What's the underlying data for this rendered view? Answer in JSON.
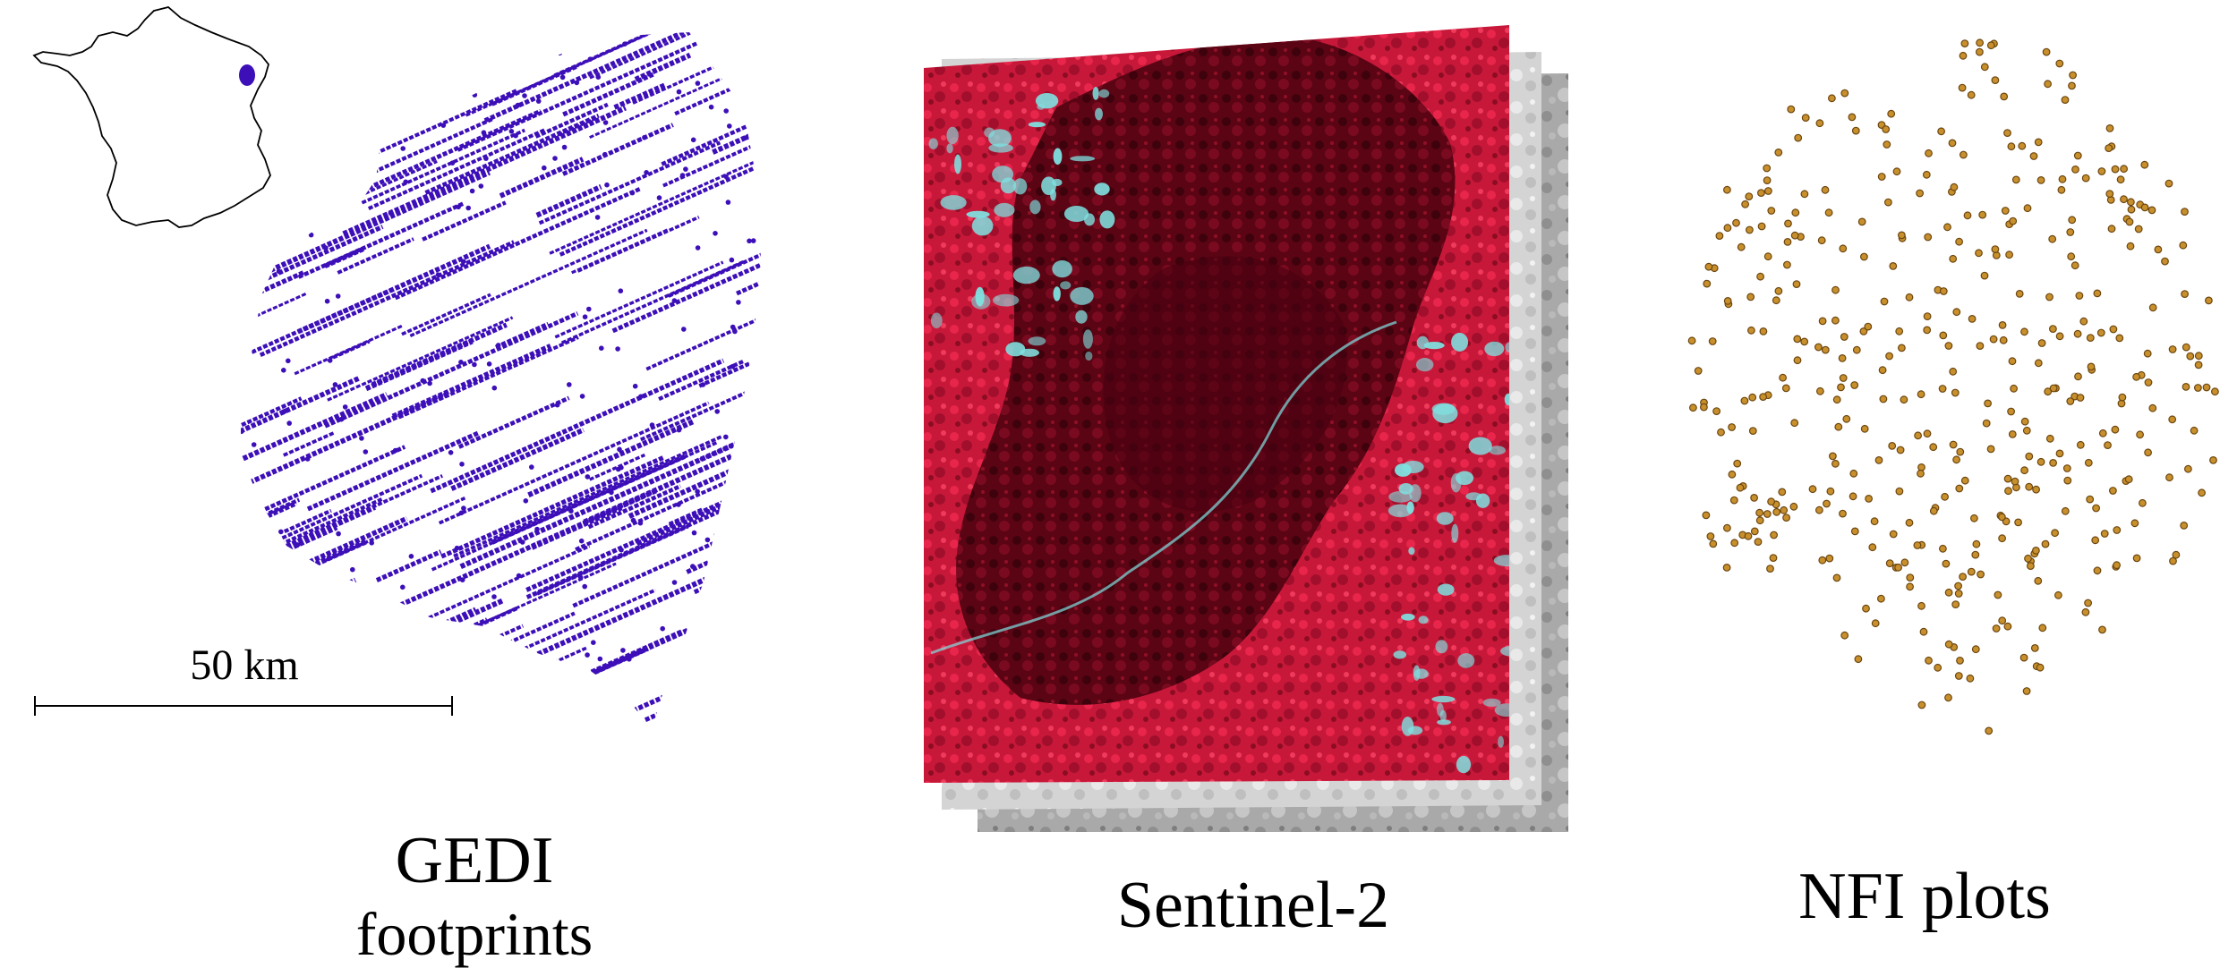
{
  "panels": {
    "gedi": {
      "title_line1": "GEDI",
      "title_line2": "footprints",
      "scale_label": "50 km",
      "track_color": "#3d0fb8"
    },
    "sentinel": {
      "title": "Sentinel-2",
      "vegetation_color": "#d11a3c",
      "forest_color": "#5a0414",
      "water_color": "#7fe0e0"
    },
    "nfi": {
      "title": "NFI plots",
      "plot_color": "#c8902c",
      "plot_stroke": "#6b4510"
    }
  },
  "inset_map": {
    "outline_color": "#000000",
    "region_color": "#3d0fb8"
  }
}
